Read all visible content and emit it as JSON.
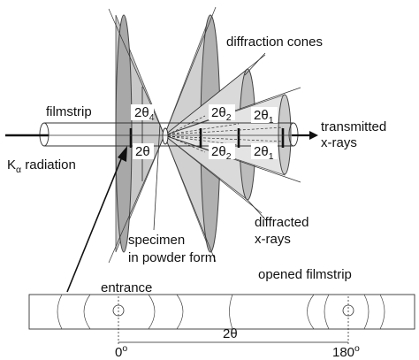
{
  "labels": {
    "diffraction_cones": "diffraction cones",
    "filmstrip": "filmstrip",
    "transmitted_line1": "transmitted",
    "transmitted_line2": "x-rays",
    "k_alpha_K": "K",
    "k_alpha_sub": "α",
    "k_alpha_rest": " radiation",
    "diffracted_line1": "diffracted",
    "diffracted_line2": "x-rays",
    "specimen_line1": "specimen",
    "specimen_line2": "in powder form",
    "entrance": "entrance",
    "opened_filmstrip": "opened filmstrip"
  },
  "angles": {
    "two_theta_4": {
      "base": "2θ",
      "sub": "4"
    },
    "two_theta_2_top": {
      "base": "2θ",
      "sub": "2"
    },
    "two_theta_1_top": {
      "base": "2θ",
      "sub": "1"
    },
    "two_theta_bottom": "2θ",
    "two_theta_2_bottom": {
      "base": "2θ",
      "sub": "2"
    },
    "two_theta_1_bottom": {
      "base": "2θ",
      "sub": "1"
    }
  },
  "strip_axis": {
    "zero": {
      "base": "0",
      "sup": "o"
    },
    "span": "2θ",
    "one_eighty": {
      "base": "180",
      "sup": "o"
    }
  },
  "colors": {
    "cone_fill": "#c8c8c8",
    "cone_dark": "#a8a8a8",
    "cone_light": "#dcdcdc",
    "line": "#222222"
  }
}
